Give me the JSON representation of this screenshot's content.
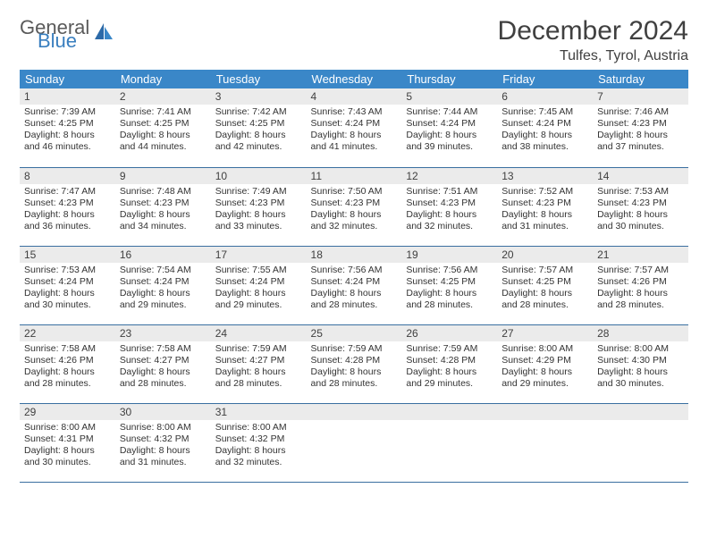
{
  "logo": {
    "line1": "General",
    "line2": "Blue"
  },
  "title": "December 2024",
  "location": "Tulfes, Tyrol, Austria",
  "colors": {
    "headerBg": "#3a87c8",
    "headerText": "#ffffff",
    "dayNumBg": "#ebebeb",
    "rowBorder": "#3a6fa0",
    "logoBlue": "#3a7fbf"
  },
  "weekdays": [
    "Sunday",
    "Monday",
    "Tuesday",
    "Wednesday",
    "Thursday",
    "Friday",
    "Saturday"
  ],
  "days": [
    {
      "n": "1",
      "sr": "7:39 AM",
      "ss": "4:25 PM",
      "dl": "8 hours and 46 minutes."
    },
    {
      "n": "2",
      "sr": "7:41 AM",
      "ss": "4:25 PM",
      "dl": "8 hours and 44 minutes."
    },
    {
      "n": "3",
      "sr": "7:42 AM",
      "ss": "4:25 PM",
      "dl": "8 hours and 42 minutes."
    },
    {
      "n": "4",
      "sr": "7:43 AM",
      "ss": "4:24 PM",
      "dl": "8 hours and 41 minutes."
    },
    {
      "n": "5",
      "sr": "7:44 AM",
      "ss": "4:24 PM",
      "dl": "8 hours and 39 minutes."
    },
    {
      "n": "6",
      "sr": "7:45 AM",
      "ss": "4:24 PM",
      "dl": "8 hours and 38 minutes."
    },
    {
      "n": "7",
      "sr": "7:46 AM",
      "ss": "4:23 PM",
      "dl": "8 hours and 37 minutes."
    },
    {
      "n": "8",
      "sr": "7:47 AM",
      "ss": "4:23 PM",
      "dl": "8 hours and 36 minutes."
    },
    {
      "n": "9",
      "sr": "7:48 AM",
      "ss": "4:23 PM",
      "dl": "8 hours and 34 minutes."
    },
    {
      "n": "10",
      "sr": "7:49 AM",
      "ss": "4:23 PM",
      "dl": "8 hours and 33 minutes."
    },
    {
      "n": "11",
      "sr": "7:50 AM",
      "ss": "4:23 PM",
      "dl": "8 hours and 32 minutes."
    },
    {
      "n": "12",
      "sr": "7:51 AM",
      "ss": "4:23 PM",
      "dl": "8 hours and 32 minutes."
    },
    {
      "n": "13",
      "sr": "7:52 AM",
      "ss": "4:23 PM",
      "dl": "8 hours and 31 minutes."
    },
    {
      "n": "14",
      "sr": "7:53 AM",
      "ss": "4:23 PM",
      "dl": "8 hours and 30 minutes."
    },
    {
      "n": "15",
      "sr": "7:53 AM",
      "ss": "4:24 PM",
      "dl": "8 hours and 30 minutes."
    },
    {
      "n": "16",
      "sr": "7:54 AM",
      "ss": "4:24 PM",
      "dl": "8 hours and 29 minutes."
    },
    {
      "n": "17",
      "sr": "7:55 AM",
      "ss": "4:24 PM",
      "dl": "8 hours and 29 minutes."
    },
    {
      "n": "18",
      "sr": "7:56 AM",
      "ss": "4:24 PM",
      "dl": "8 hours and 28 minutes."
    },
    {
      "n": "19",
      "sr": "7:56 AM",
      "ss": "4:25 PM",
      "dl": "8 hours and 28 minutes."
    },
    {
      "n": "20",
      "sr": "7:57 AM",
      "ss": "4:25 PM",
      "dl": "8 hours and 28 minutes."
    },
    {
      "n": "21",
      "sr": "7:57 AM",
      "ss": "4:26 PM",
      "dl": "8 hours and 28 minutes."
    },
    {
      "n": "22",
      "sr": "7:58 AM",
      "ss": "4:26 PM",
      "dl": "8 hours and 28 minutes."
    },
    {
      "n": "23",
      "sr": "7:58 AM",
      "ss": "4:27 PM",
      "dl": "8 hours and 28 minutes."
    },
    {
      "n": "24",
      "sr": "7:59 AM",
      "ss": "4:27 PM",
      "dl": "8 hours and 28 minutes."
    },
    {
      "n": "25",
      "sr": "7:59 AM",
      "ss": "4:28 PM",
      "dl": "8 hours and 28 minutes."
    },
    {
      "n": "26",
      "sr": "7:59 AM",
      "ss": "4:28 PM",
      "dl": "8 hours and 29 minutes."
    },
    {
      "n": "27",
      "sr": "8:00 AM",
      "ss": "4:29 PM",
      "dl": "8 hours and 29 minutes."
    },
    {
      "n": "28",
      "sr": "8:00 AM",
      "ss": "4:30 PM",
      "dl": "8 hours and 30 minutes."
    },
    {
      "n": "29",
      "sr": "8:00 AM",
      "ss": "4:31 PM",
      "dl": "8 hours and 30 minutes."
    },
    {
      "n": "30",
      "sr": "8:00 AM",
      "ss": "4:32 PM",
      "dl": "8 hours and 31 minutes."
    },
    {
      "n": "31",
      "sr": "8:00 AM",
      "ss": "4:32 PM",
      "dl": "8 hours and 32 minutes."
    }
  ],
  "labels": {
    "sunrise": "Sunrise: ",
    "sunset": "Sunset: ",
    "daylight": "Daylight: "
  }
}
